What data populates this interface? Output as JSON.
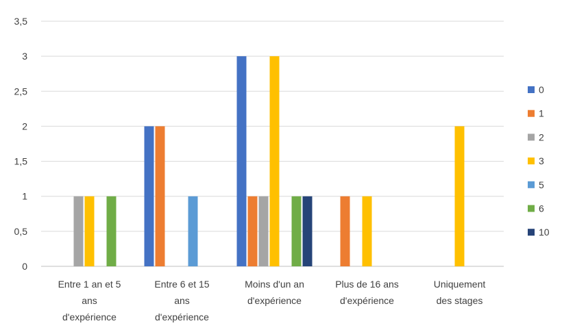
{
  "chart_data": {
    "type": "bar",
    "categories": [
      [
        "Entre 1 an et 5",
        "ans",
        "d'expérience"
      ],
      [
        "Entre 6 et 15",
        "ans",
        "d'expérience"
      ],
      [
        "Moins d'un an",
        "d'expérience"
      ],
      [
        "Plus de 16 ans",
        "d'expérience"
      ],
      [
        "Uniquement",
        "des stages"
      ]
    ],
    "series": [
      {
        "name": "0",
        "color": "#4472c4",
        "values": [
          0,
          2,
          3,
          0,
          0
        ]
      },
      {
        "name": "1",
        "color": "#ed7d31",
        "values": [
          0,
          2,
          1,
          1,
          0
        ]
      },
      {
        "name": "2",
        "color": "#a5a5a5",
        "values": [
          1,
          0,
          1,
          0,
          0
        ]
      },
      {
        "name": "3",
        "color": "#ffc000",
        "values": [
          1,
          0,
          3,
          1,
          2
        ]
      },
      {
        "name": "5",
        "color": "#5b9bd5",
        "values": [
          0,
          1,
          0,
          0,
          0
        ]
      },
      {
        "name": "6",
        "color": "#70ad47",
        "values": [
          1,
          0,
          1,
          0,
          0
        ]
      },
      {
        "name": "10",
        "color": "#264478",
        "values": [
          0,
          0,
          1,
          0,
          0
        ]
      }
    ],
    "y_ticks": [
      "0",
      "0,5",
      "1",
      "1,5",
      "2",
      "2,5",
      "3",
      "3,5"
    ],
    "ylim": [
      0,
      3.5
    ],
    "grid": true,
    "legend": "right",
    "title": "",
    "xlabel": "",
    "ylabel": ""
  }
}
